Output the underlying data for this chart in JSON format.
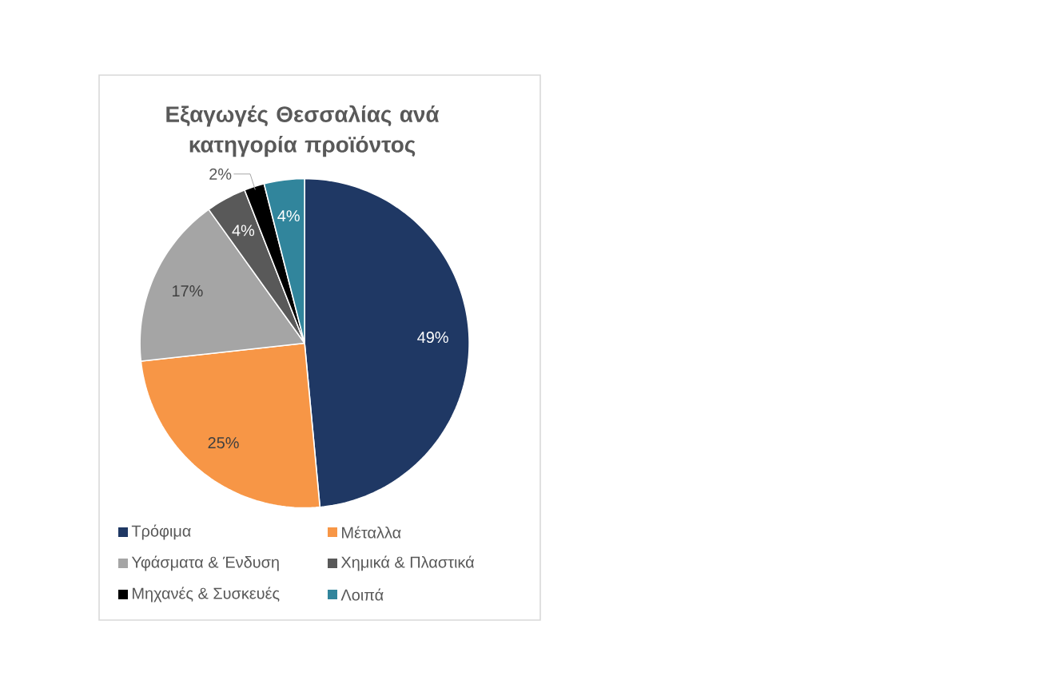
{
  "chart_data": {
    "type": "pie",
    "title": "Εξαγωγές Θεσσαλίας ανά κατηγορία προϊόντος",
    "categories": [
      "Τρόφιμα",
      "Μέταλλα",
      "Υφάσματα & Ένδυση",
      "Χημικά & Πλαστικά",
      "Μηχανές & Συσκευές",
      "Λοιπά"
    ],
    "values": [
      49,
      25,
      17,
      4,
      2,
      4
    ],
    "colors": [
      "#1f3864",
      "#f79646",
      "#a5a5a5",
      "#595959",
      "#000000",
      "#31859c"
    ],
    "value_labels": [
      "49%",
      "25%",
      "17%",
      "4%",
      "2%",
      "4%"
    ],
    "legend": "bottom"
  }
}
